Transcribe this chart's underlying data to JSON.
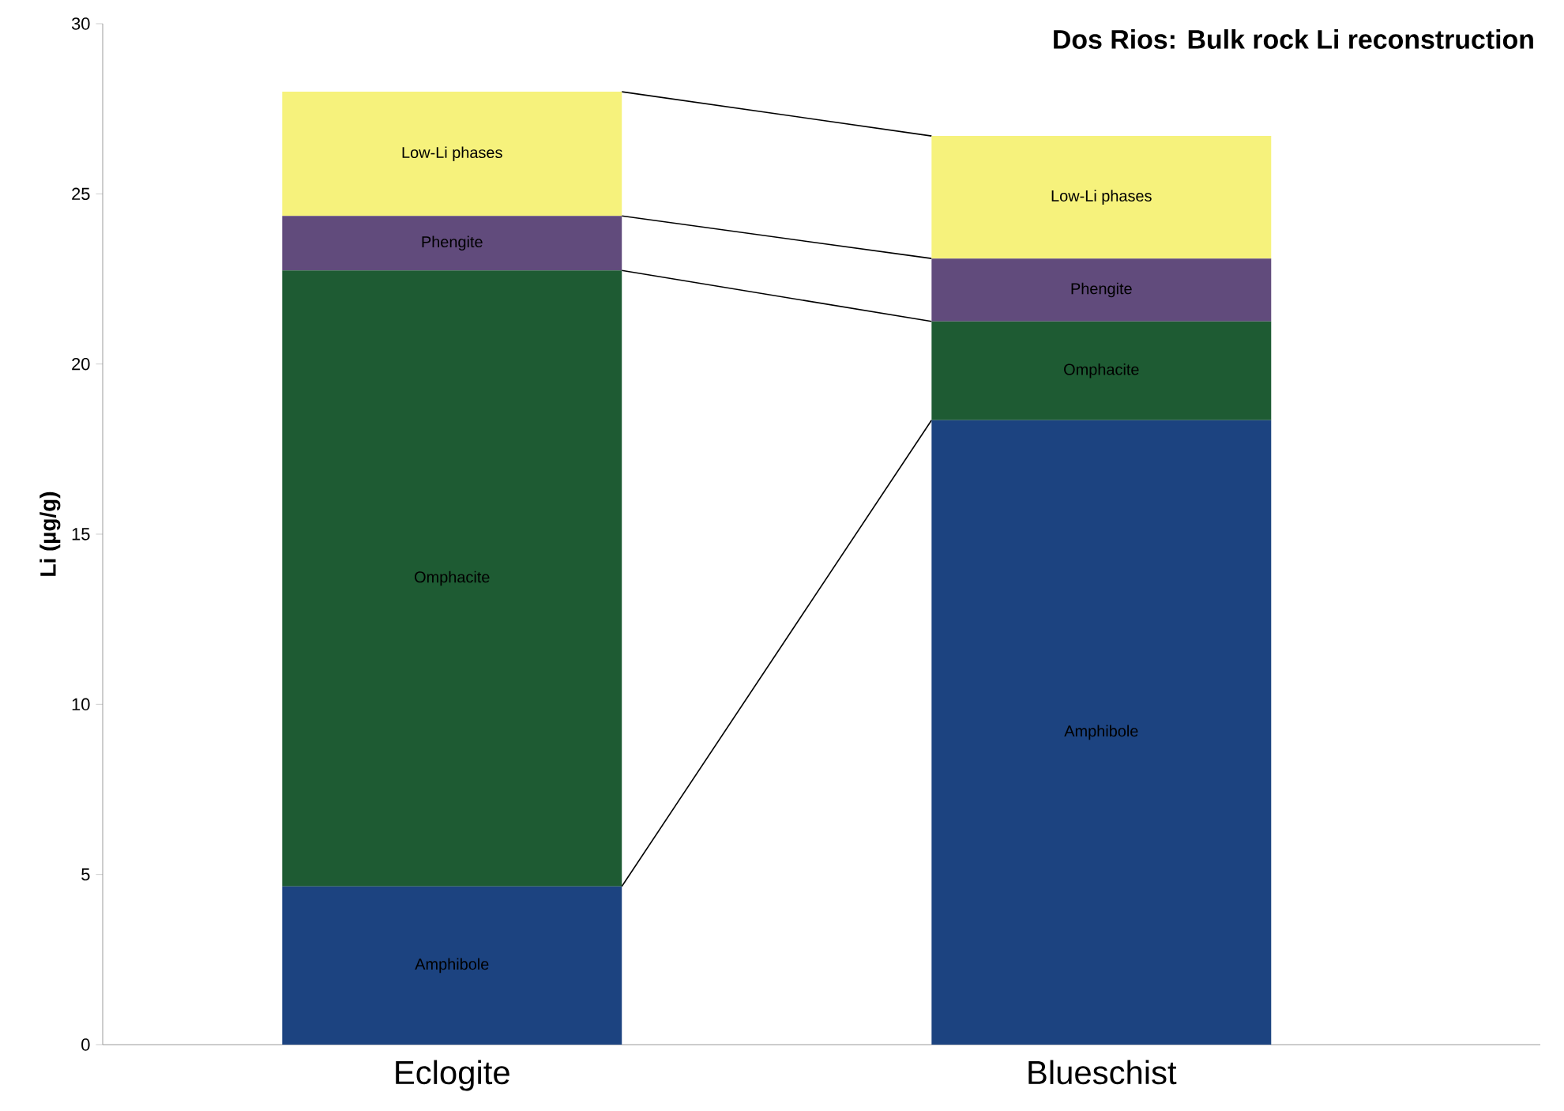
{
  "chart_data": {
    "type": "bar",
    "stacked": true,
    "title": "Dos Rios: Bulk rock Li reconstruction",
    "ylabel": "Li (µg/g)",
    "categories": [
      "Eclogite",
      "Blueschist"
    ],
    "series": [
      {
        "name": "Amphibole",
        "color": "#1c4380",
        "values": [
          4.65,
          18.35
        ]
      },
      {
        "name": "Omphacite",
        "color": "#1e5b33",
        "values": [
          18.1,
          2.9
        ]
      },
      {
        "name": "Phengite",
        "color": "#614b7c",
        "values": [
          1.6,
          1.85
        ]
      },
      {
        "name": "Low-Li phases",
        "color": "#f6f27c",
        "values": [
          3.65,
          3.6
        ]
      }
    ],
    "ylim": [
      0,
      30
    ],
    "yticks": [
      0,
      5,
      10,
      15,
      20,
      25,
      30
    ],
    "grid": false
  }
}
